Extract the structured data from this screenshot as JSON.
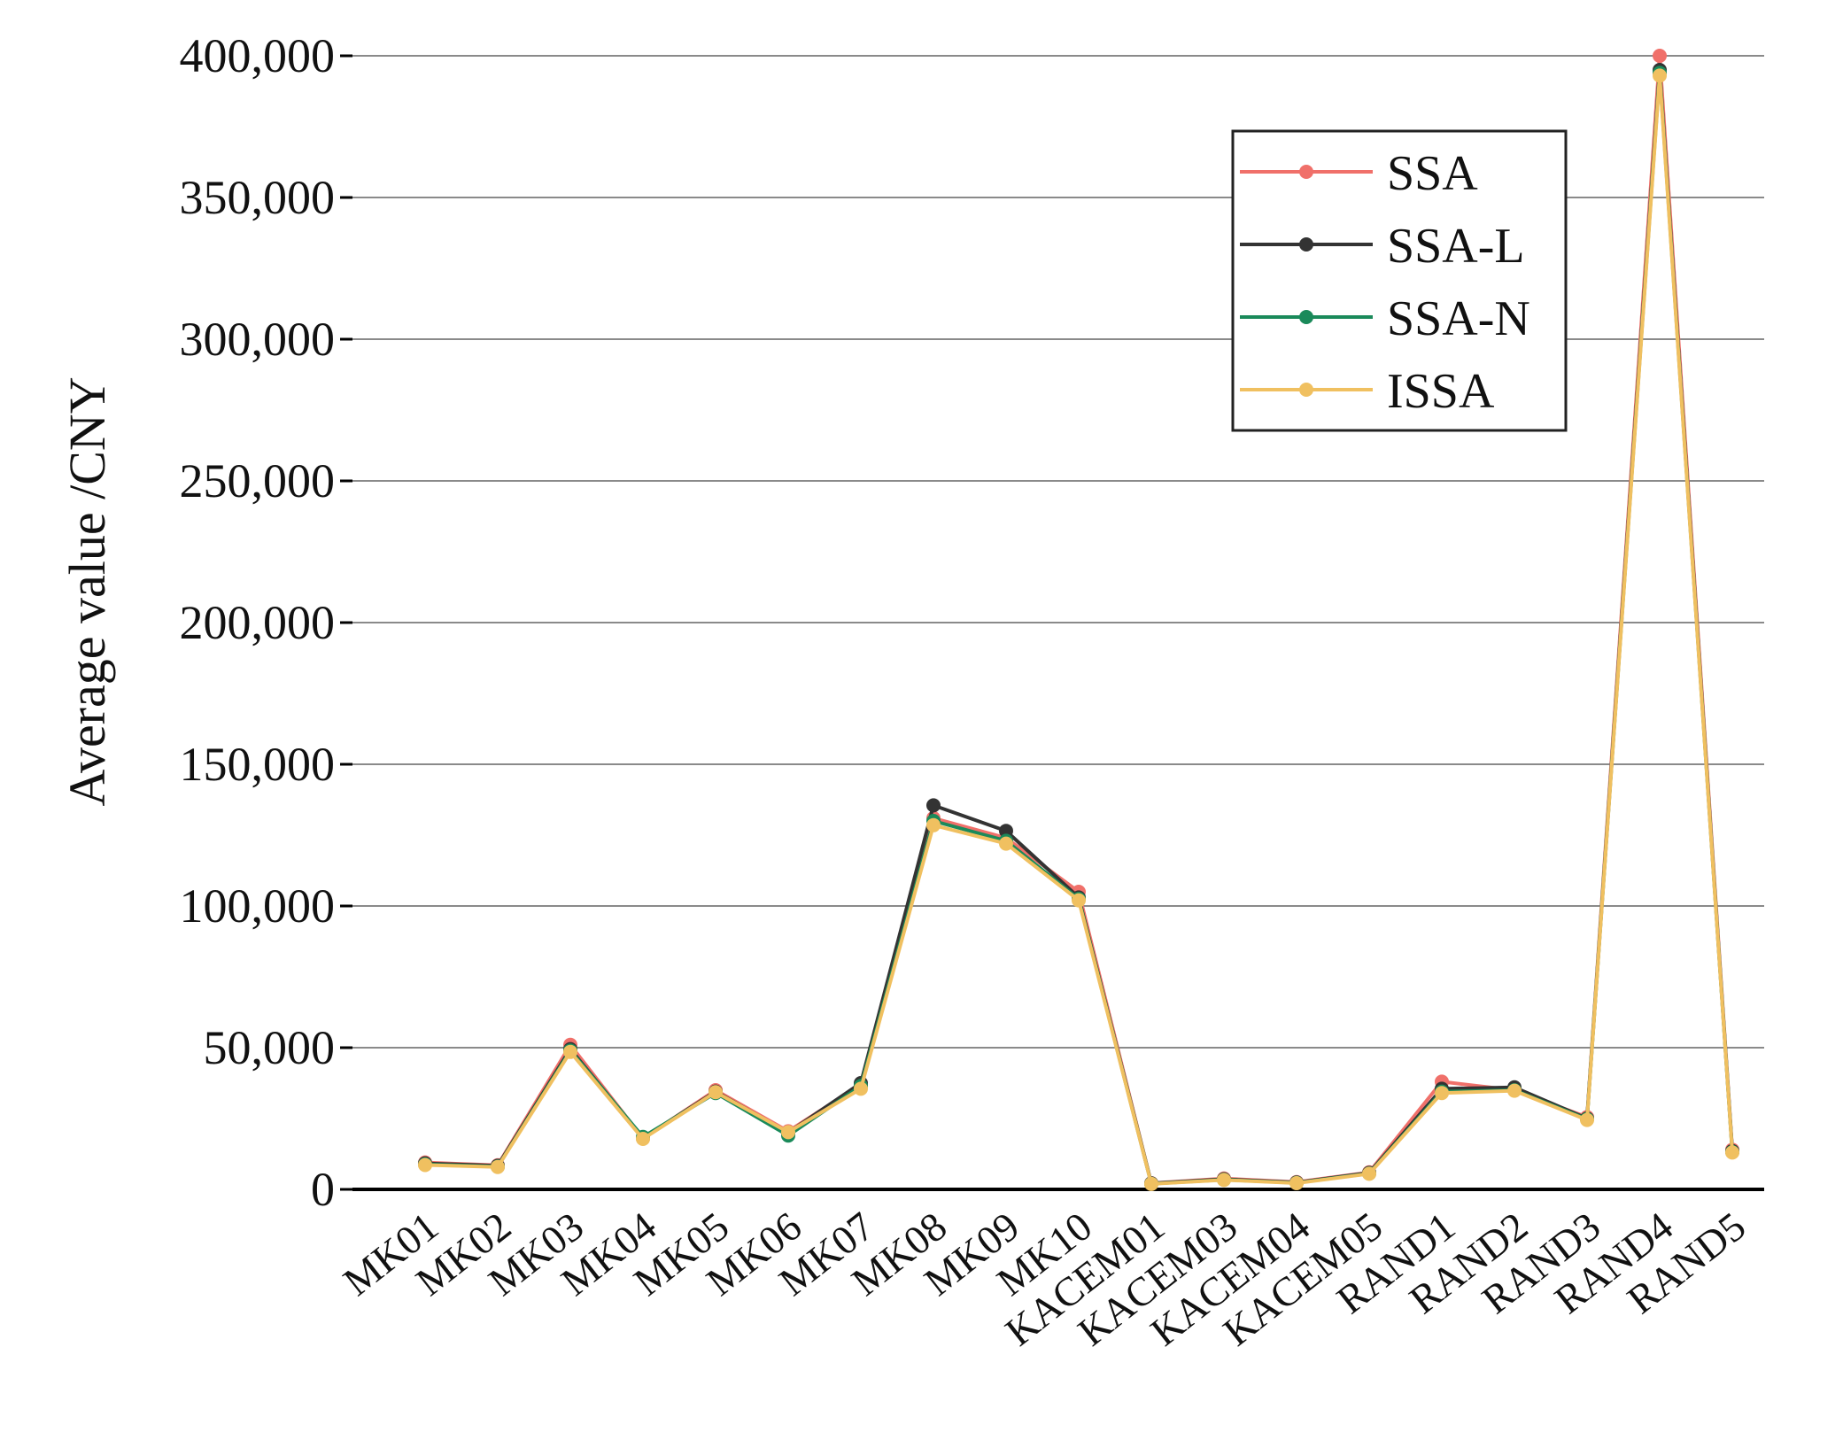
{
  "chart_data": {
    "type": "line",
    "title": "",
    "xlabel": "",
    "ylabel": "Average value /CNY",
    "ylim": [
      0,
      400000
    ],
    "yticks": [
      0,
      50000,
      100000,
      150000,
      200000,
      250000,
      300000,
      350000,
      400000
    ],
    "ytick_labels": [
      "0",
      "50,000",
      "100,000",
      "150,000",
      "200,000",
      "250,000",
      "300,000",
      "350,000",
      "400,000"
    ],
    "grid": true,
    "legend_position": "top-right",
    "categories": [
      "MK01",
      "MK02",
      "MK03",
      "MK04",
      "MK05",
      "MK06",
      "MK07",
      "MK08",
      "MK09",
      "MK10",
      "KACEM01",
      "KACEM03",
      "KACEM04",
      "KACEM05",
      "RAND1",
      "RAND2",
      "RAND3",
      "RAND4",
      "RAND5"
    ],
    "series": [
      {
        "name": "SSA",
        "color": "#f0706a",
        "values": [
          9500,
          8500,
          51000,
          18000,
          35000,
          20500,
          37000,
          131000,
          124000,
          105000,
          2200,
          3800,
          2600,
          6000,
          38000,
          35000,
          25500,
          400000,
          14000
        ]
      },
      {
        "name": "SSA-L",
        "color": "#333333",
        "values": [
          9200,
          8300,
          49500,
          18200,
          34500,
          20000,
          37500,
          135500,
          126500,
          103000,
          2100,
          3600,
          2400,
          5800,
          35500,
          36000,
          25000,
          395000,
          13500
        ]
      },
      {
        "name": "SSA-N",
        "color": "#1a8a5a",
        "values": [
          8800,
          8000,
          49000,
          18500,
          34000,
          19000,
          36500,
          130000,
          123000,
          102500,
          2000,
          3400,
          2300,
          5600,
          34500,
          35000,
          24800,
          394000,
          13200
        ]
      },
      {
        "name": "ISSA",
        "color": "#f0c060",
        "values": [
          8600,
          7900,
          48500,
          17800,
          34300,
          20200,
          35500,
          128500,
          122000,
          102000,
          1900,
          3300,
          2200,
          5500,
          34000,
          34800,
          24500,
          393000,
          13000
        ]
      }
    ]
  }
}
